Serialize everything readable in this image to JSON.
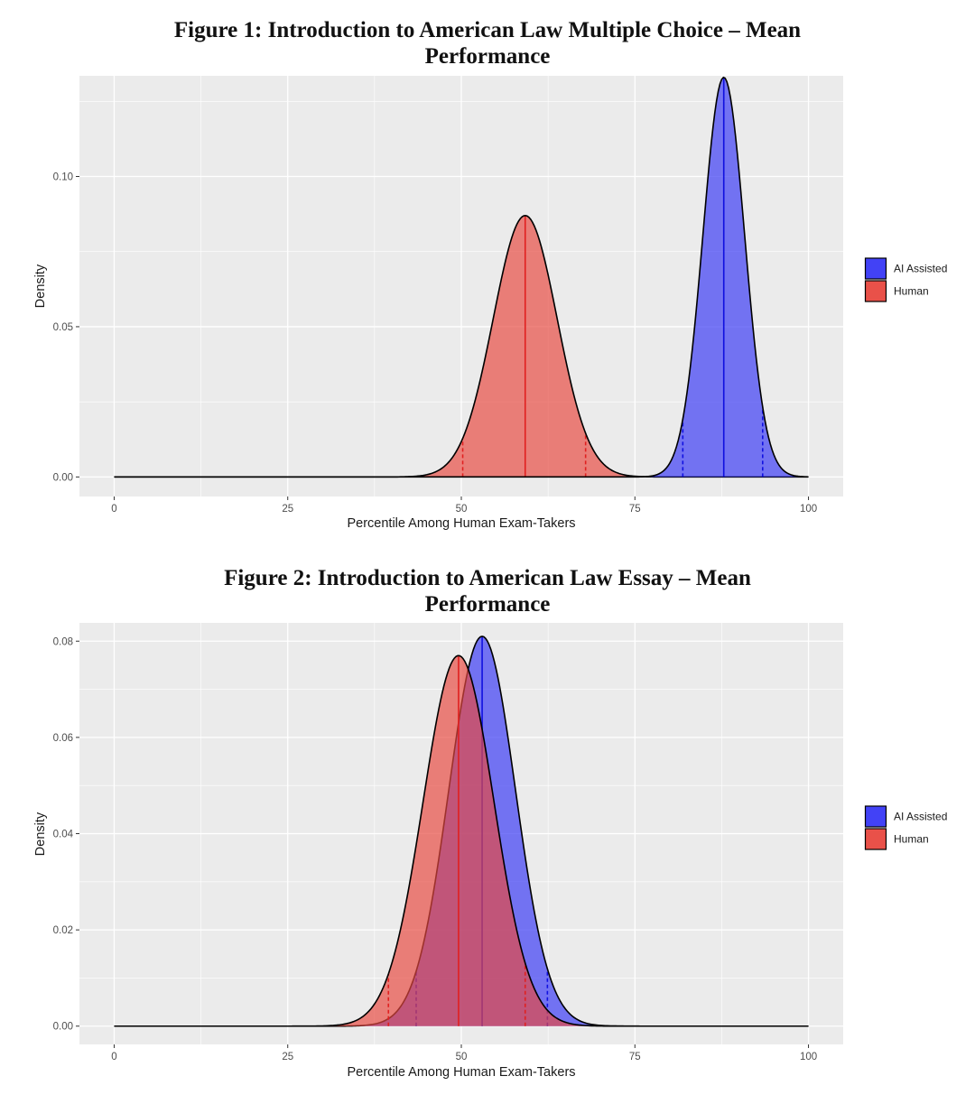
{
  "figures": [
    {
      "title_line1": "Figure 1: Introduction to American Law Multiple Choice – Mean",
      "title_line2": "Performance"
    },
    {
      "title_line1": "Figure 2: Introduction to American Law Essay – Mean",
      "title_line2": "Performance"
    }
  ],
  "colors": {
    "panel_bg": "#EBEBEB",
    "grid": "#FFFFFF",
    "ai_fill": "#3838F5",
    "ai_line": "#1010E0",
    "human_fill": "#E8483F",
    "human_line": "#E02020",
    "outline": "#000000"
  },
  "chart_data": [
    {
      "type": "area",
      "title": "Figure 1: Introduction to American Law Multiple Choice – Mean Performance",
      "xlabel": "Percentile Among Human Exam-Takers",
      "ylabel": "Density",
      "xlim": [
        0,
        100
      ],
      "ylim": [
        -0.0065,
        0.1335
      ],
      "x_ticks": [
        "0",
        "25",
        "50",
        "75",
        "100"
      ],
      "y_ticks": [
        "0.00",
        "0.05",
        "0.10"
      ],
      "y_tick_values": [
        0,
        0.05,
        0.1
      ],
      "legend": {
        "position": "right",
        "entries": [
          "AI Assisted",
          "Human"
        ]
      },
      "series": [
        {
          "name": "AI Assisted",
          "mean": 87.8,
          "sd": 3.0,
          "peak": 0.133,
          "ci": [
            81.9,
            93.4
          ]
        },
        {
          "name": "Human",
          "mean": 59.2,
          "sd": 4.6,
          "peak": 0.087,
          "ci": [
            50.2,
            67.9
          ]
        }
      ]
    },
    {
      "type": "area",
      "title": "Figure 2: Introduction to American Law Essay – Mean Performance",
      "xlabel": "Percentile Among Human Exam-Takers",
      "ylabel": "Density",
      "xlim": [
        0,
        100
      ],
      "ylim": [
        -0.0038,
        0.0838
      ],
      "x_ticks": [
        "0",
        "25",
        "50",
        "75",
        "100"
      ],
      "y_ticks": [
        "0.00",
        "0.02",
        "0.04",
        "0.06",
        "0.08"
      ],
      "y_tick_values": [
        0,
        0.02,
        0.04,
        0.06,
        0.08
      ],
      "legend": {
        "position": "right",
        "entries": [
          "AI Assisted",
          "Human"
        ]
      },
      "series": [
        {
          "name": "AI Assisted",
          "mean": 53.0,
          "sd": 4.8,
          "peak": 0.081,
          "ci": [
            43.5,
            62.4
          ]
        },
        {
          "name": "Human",
          "mean": 49.6,
          "sd": 5.1,
          "peak": 0.077,
          "ci": [
            39.5,
            59.2
          ]
        }
      ]
    }
  ]
}
